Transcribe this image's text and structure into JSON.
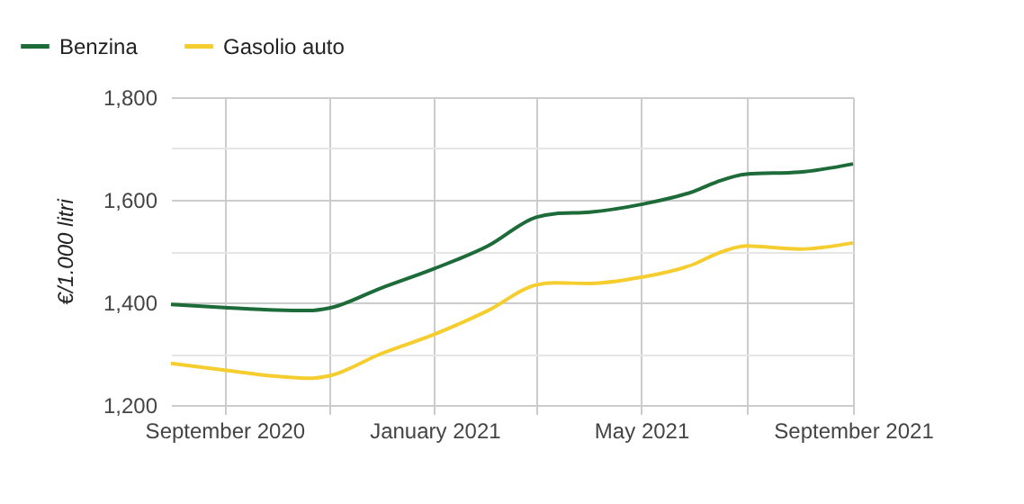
{
  "chart_data": {
    "type": "line",
    "ylabel": "€/1.000 litri",
    "x": [
      "2020-08-01",
      "2020-09-01",
      "2020-10-01",
      "2020-10-20",
      "2020-11-01",
      "2020-12-01",
      "2021-01-01",
      "2021-02-01",
      "2021-03-01",
      "2021-03-12",
      "2021-04-01",
      "2021-05-01",
      "2021-06-01",
      "2021-06-14",
      "2021-07-01",
      "2021-08-01",
      "2021-09-01"
    ],
    "series": [
      {
        "name": "Benzina",
        "color": "#1e6b3a",
        "values": [
          1396,
          1390,
          1385,
          1384,
          1389,
          1428,
          1466,
          1510,
          1566,
          1573,
          1576,
          1591,
          1617,
          1635,
          1650,
          1654,
          1670
        ]
      },
      {
        "name": "Gasolio auto",
        "color": "#f5cd2f",
        "values": [
          1281,
          1268,
          1256,
          1252,
          1257,
          1300,
          1338,
          1384,
          1434,
          1438,
          1437,
          1449,
          1475,
          1495,
          1510,
          1504,
          1516
        ]
      }
    ],
    "xlim": [
      "2020-08-01",
      "2021-09-01"
    ],
    "xticks": [
      {
        "value": "2020-09-01",
        "label": "September 2020"
      },
      {
        "value": "2020-11-01",
        "label": null
      },
      {
        "value": "2021-01-01",
        "label": "January 2021"
      },
      {
        "value": "2021-03-01",
        "label": null
      },
      {
        "value": "2021-05-01",
        "label": "May 2021"
      },
      {
        "value": "2021-07-01",
        "label": null
      },
      {
        "value": "2021-09-01",
        "label": "September 2021"
      }
    ],
    "ylim": [
      1200,
      1800
    ],
    "yticks": [
      {
        "value": 1200,
        "label": "1,200"
      },
      {
        "value": 1300,
        "label": null
      },
      {
        "value": 1400,
        "label": "1,400"
      },
      {
        "value": 1500,
        "label": null
      },
      {
        "value": 1600,
        "label": "1,600"
      },
      {
        "value": 1700,
        "label": null
      },
      {
        "value": 1800,
        "label": "1,800"
      }
    ],
    "grid": true,
    "legend": "top left",
    "line_style": "solid"
  }
}
